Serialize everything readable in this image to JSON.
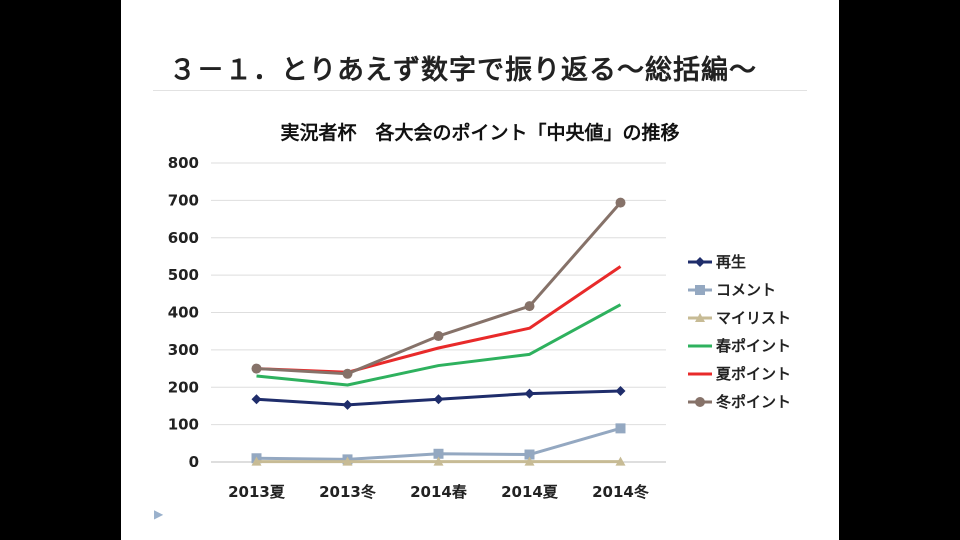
{
  "slide": {
    "title": "３－１．とりあえず数字で振り返る～総括編～"
  },
  "chart_data": {
    "type": "line",
    "title": "実況者杯　各大会のポイント「中央値」の推移",
    "categories": [
      "2013夏",
      "2013冬",
      "2014春",
      "2014夏",
      "2014冬"
    ],
    "ylim": [
      0,
      800
    ],
    "yticks": [
      0,
      100,
      200,
      300,
      400,
      500,
      600,
      700,
      800
    ],
    "grid": true,
    "legend_position": "right",
    "series": [
      {
        "name": "再生",
        "color": "#1f2d6b",
        "marker": "diamond",
        "values": [
          168,
          153,
          168,
          183,
          190
        ]
      },
      {
        "name": "コメント",
        "color": "#94a8c1",
        "marker": "square",
        "values": [
          10,
          7,
          22,
          20,
          90
        ]
      },
      {
        "name": "マイリスト",
        "color": "#c7bb95",
        "marker": "triangle",
        "values": [
          1,
          1,
          1,
          1,
          1
        ]
      },
      {
        "name": "春ポイント",
        "color": "#2eb15e",
        "marker": "none",
        "values": [
          230,
          206,
          258,
          288,
          421
        ]
      },
      {
        "name": "夏ポイント",
        "color": "#e82a2a",
        "marker": "none",
        "values": [
          250,
          240,
          305,
          358,
          523
        ]
      },
      {
        "name": "冬ポイント",
        "color": "#867269",
        "marker": "circle",
        "values": [
          250,
          236,
          337,
          417,
          694
        ]
      }
    ]
  }
}
